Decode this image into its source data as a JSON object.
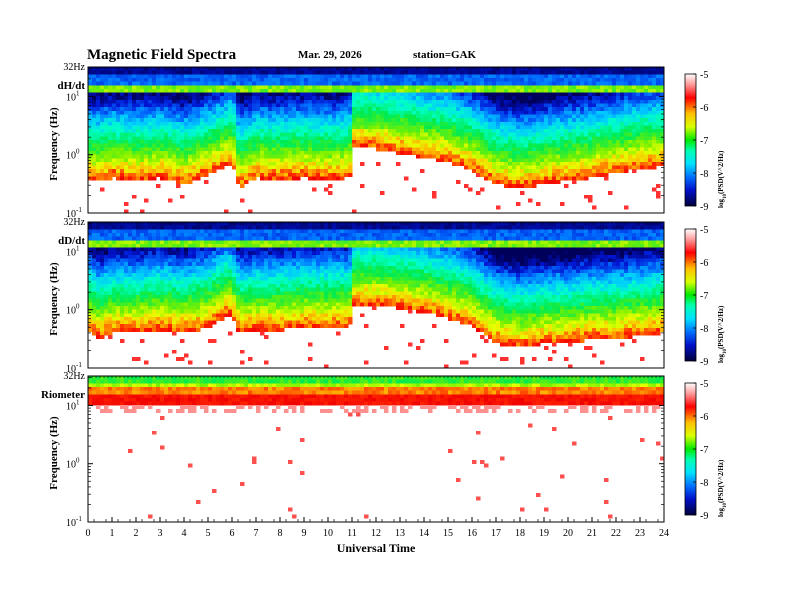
{
  "header": {
    "title": "Magnetic  Field  Spectra",
    "date": "Mar. 29, 2026",
    "station": "station=GAK"
  },
  "colorbar": {
    "ticks": [
      "-5",
      "-6",
      "-7",
      "-8",
      "-9"
    ],
    "label": "log",
    "label_sub": "10",
    "label_rest": "(PSD(V^2/Hz)"
  },
  "chart_data": {
    "type": "heatmap",
    "title": "Magnetic  Field  Spectra",
    "xlabel": "Universal Time",
    "x_ticks": [
      "0",
      "1",
      "2",
      "3",
      "4",
      "5",
      "6",
      "7",
      "8",
      "9",
      "10",
      "11",
      "12",
      "13",
      "14",
      "15",
      "16",
      "17",
      "18",
      "19",
      "20",
      "21",
      "22",
      "23",
      "24"
    ],
    "xlim": [
      0,
      24
    ],
    "ylabel": "Frequency  (Hz)",
    "yscale": "log",
    "ylim": [
      0.1,
      32
    ],
    "y_top_label": "32Hz",
    "y_ticks": [
      {
        "base": "10",
        "exp": "1"
      },
      {
        "base": "10",
        "exp": "0"
      },
      {
        "base": "10",
        "exp": "-1"
      }
    ],
    "colorscale_range": [
      -9,
      -5
    ],
    "panels": [
      {
        "name": "dH/dt",
        "background_boundary_hz": [
          [
            0,
            0.42
          ],
          [
            0.5,
            0.38
          ],
          [
            1,
            0.45
          ],
          [
            2,
            0.4
          ],
          [
            3,
            0.45
          ],
          [
            4,
            0.35
          ],
          [
            5,
            0.5
          ],
          [
            5.8,
            0.7
          ],
          [
            6,
            0.85
          ],
          [
            6.3,
            0.3
          ],
          [
            7,
            0.45
          ],
          [
            8,
            0.42
          ],
          [
            9,
            0.45
          ],
          [
            10,
            0.42
          ],
          [
            10.9,
            0.45
          ],
          [
            11.1,
            1.6
          ],
          [
            12,
            1.4
          ],
          [
            13,
            1.2
          ],
          [
            14,
            1.0
          ],
          [
            15,
            0.85
          ],
          [
            16,
            0.6
          ],
          [
            17,
            0.35
          ],
          [
            18,
            0.3
          ],
          [
            19,
            0.35
          ],
          [
            20,
            0.4
          ],
          [
            21,
            0.45
          ],
          [
            22,
            0.55
          ],
          [
            23,
            0.65
          ],
          [
            24,
            0.7
          ]
        ]
      },
      {
        "name": "dD/dt",
        "background_boundary_hz": [
          [
            0,
            0.5
          ],
          [
            0.5,
            0.35
          ],
          [
            1,
            0.45
          ],
          [
            2,
            0.45
          ],
          [
            3,
            0.5
          ],
          [
            4,
            0.45
          ],
          [
            5,
            0.55
          ],
          [
            5.8,
            0.9
          ],
          [
            6,
            0.85
          ],
          [
            6.3,
            0.45
          ],
          [
            7,
            0.5
          ],
          [
            8,
            0.5
          ],
          [
            9,
            0.55
          ],
          [
            10,
            0.55
          ],
          [
            10.9,
            0.55
          ],
          [
            11.1,
            1.4
          ],
          [
            12,
            1.3
          ],
          [
            13,
            1.2
          ],
          [
            14,
            1.0
          ],
          [
            15,
            0.8
          ],
          [
            16,
            0.6
          ],
          [
            17,
            0.3
          ],
          [
            18,
            0.25
          ],
          [
            19,
            0.3
          ],
          [
            20,
            0.3
          ],
          [
            21,
            0.35
          ],
          [
            22,
            0.35
          ],
          [
            23,
            0.4
          ],
          [
            24,
            0.45
          ]
        ]
      },
      {
        "name": "Riometer",
        "background_boundary_hz": [
          [
            0,
            10
          ],
          [
            24,
            10
          ]
        ]
      }
    ]
  }
}
